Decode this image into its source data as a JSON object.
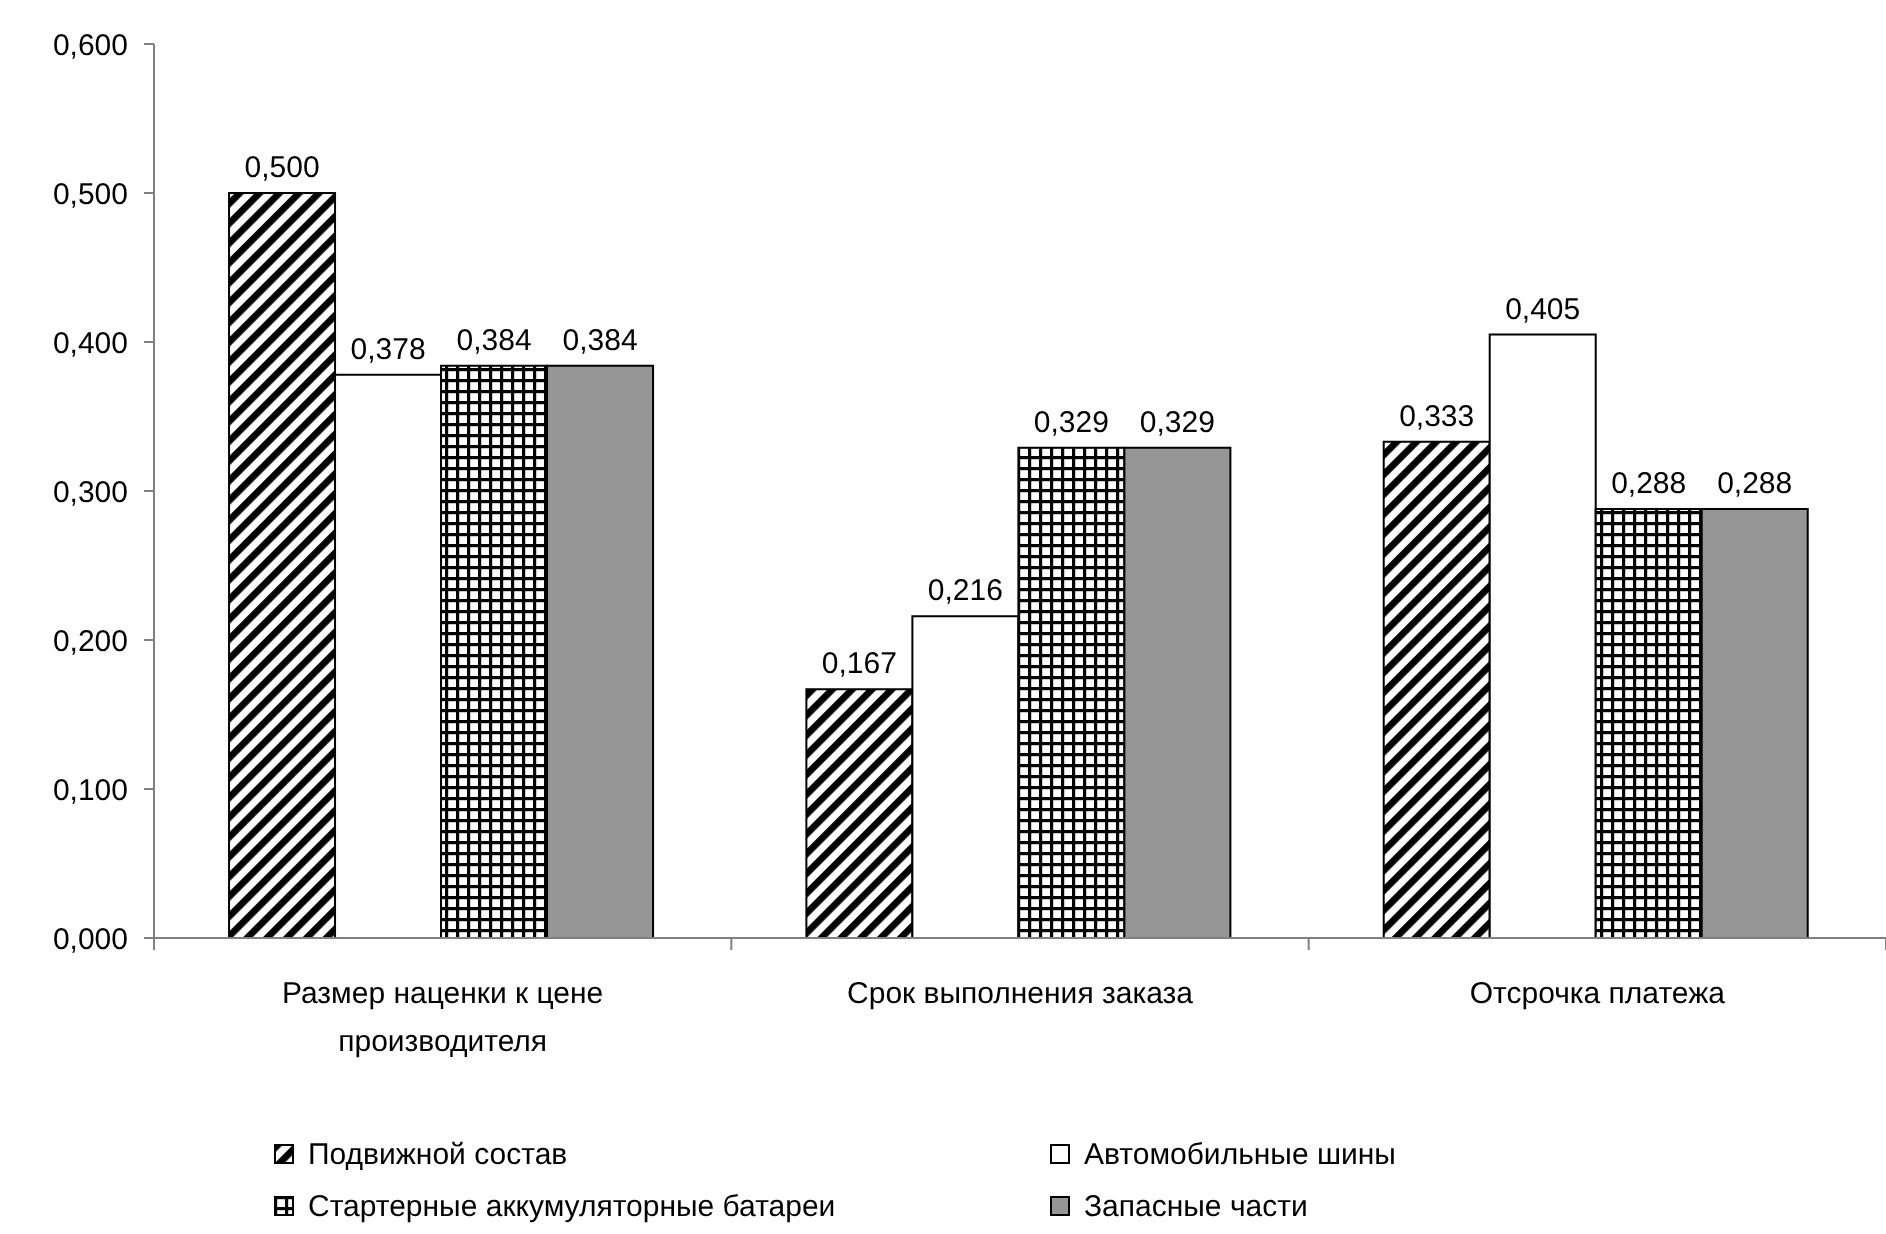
{
  "chart_data": {
    "type": "bar",
    "categories": [
      "Размер наценки к цене производителя",
      "Срок выполнения заказа",
      "Отсрочка платежа"
    ],
    "series": [
      {
        "name": "Подвижной состав",
        "color": "#000000",
        "values": [
          0.5,
          0.167,
          0.333
        ],
        "value_labels": [
          "0,500",
          "0,167",
          "0,333"
        ]
      },
      {
        "name": "Автомобильные шины",
        "color": "#ffffff",
        "values": [
          0.378,
          0.216,
          0.405
        ],
        "value_labels": [
          "0,378",
          "0,216",
          "0,405"
        ]
      },
      {
        "name": "Стартерные аккумуляторные батареи",
        "color": "#000000",
        "values": [
          0.384,
          0.329,
          0.288
        ],
        "value_labels": [
          "0,384",
          "0,329",
          "0,288"
        ]
      },
      {
        "name": "Запасные части",
        "color": "#969696",
        "values": [
          0.384,
          0.329,
          0.288
        ],
        "value_labels": [
          "0,384",
          "0,329",
          "0,288"
        ]
      }
    ],
    "ylim": [
      0,
      0.6
    ],
    "yticks": [
      {
        "value": 0,
        "label": "0,000"
      },
      {
        "value": 0.1,
        "label": "0,100"
      },
      {
        "value": 0.2,
        "label": "0,200"
      },
      {
        "value": 0.3,
        "label": "0,300"
      },
      {
        "value": 0.4,
        "label": "0,400"
      },
      {
        "value": 0.5,
        "label": "0,500"
      },
      {
        "value": 0.6,
        "label": "0,600"
      }
    ],
    "legend": "bottom"
  }
}
